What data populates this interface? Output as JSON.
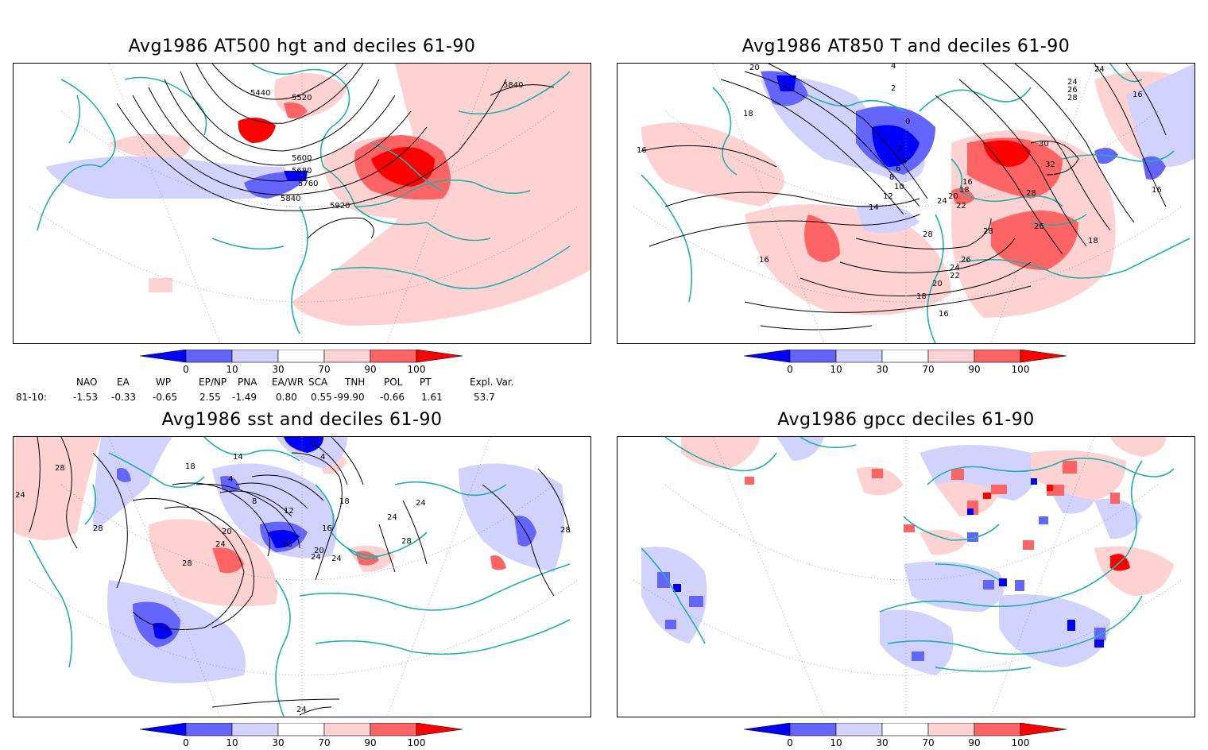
{
  "panels": [
    {
      "id": "p1",
      "title": "Avg1986 AT500 hgt and deciles 61-90"
    },
    {
      "id": "p2",
      "title": "Avg1986 AT850 T and deciles 61-90"
    },
    {
      "id": "p3",
      "title": "Avg1986 sst and deciles 61-90"
    },
    {
      "id": "p4",
      "title": "Avg1986 gpcc deciles 61-90"
    }
  ],
  "contour_labels": {
    "p1": [
      "5440",
      "5520",
      "5600",
      "5680",
      "5760",
      "5840",
      "5920",
      "5840"
    ],
    "p2": [
      "20",
      "4",
      "2",
      "24",
      "24",
      "26",
      "28",
      "16",
      "18",
      "16",
      "0",
      "2",
      "4",
      "6",
      "8",
      "10",
      "12",
      "14",
      "16",
      "18",
      "20",
      "22",
      "24",
      "30",
      "32",
      "28",
      "26",
      "18",
      "16",
      "28",
      "28",
      "26",
      "24",
      "22",
      "20",
      "18",
      "16",
      "16"
    ],
    "p3": [
      "28",
      "24",
      "28",
      "28",
      "24",
      "18",
      "14",
      "4",
      "8",
      "12",
      "16",
      "20",
      "24",
      "16",
      "20",
      "24",
      "28",
      "24",
      "24",
      "28",
      "0",
      "4",
      "18",
      "24"
    ]
  },
  "colorbar": {
    "ticks": [
      "0",
      "10",
      "30",
      "70",
      "90",
      "100"
    ],
    "colors": [
      "#0000ff",
      "#6464ff",
      "#d2d2ff",
      "#ffffff",
      "#ffd2d2",
      "#ff6464",
      "#ff0000"
    ]
  },
  "index_table": {
    "headers": [
      "NAO",
      "EA",
      "WP",
      "EP/NP",
      "PNA",
      "EA/WR",
      "SCA",
      "TNH",
      "POL",
      "PT",
      "Expl. Var."
    ],
    "row_label": "81-10:",
    "values": [
      "-1.53",
      "-0.33",
      "-0.65",
      "2.55",
      "-1.49",
      "0.80",
      "0.55",
      "-99.90",
      "-0.66",
      "1.61",
      "53.7"
    ]
  }
}
